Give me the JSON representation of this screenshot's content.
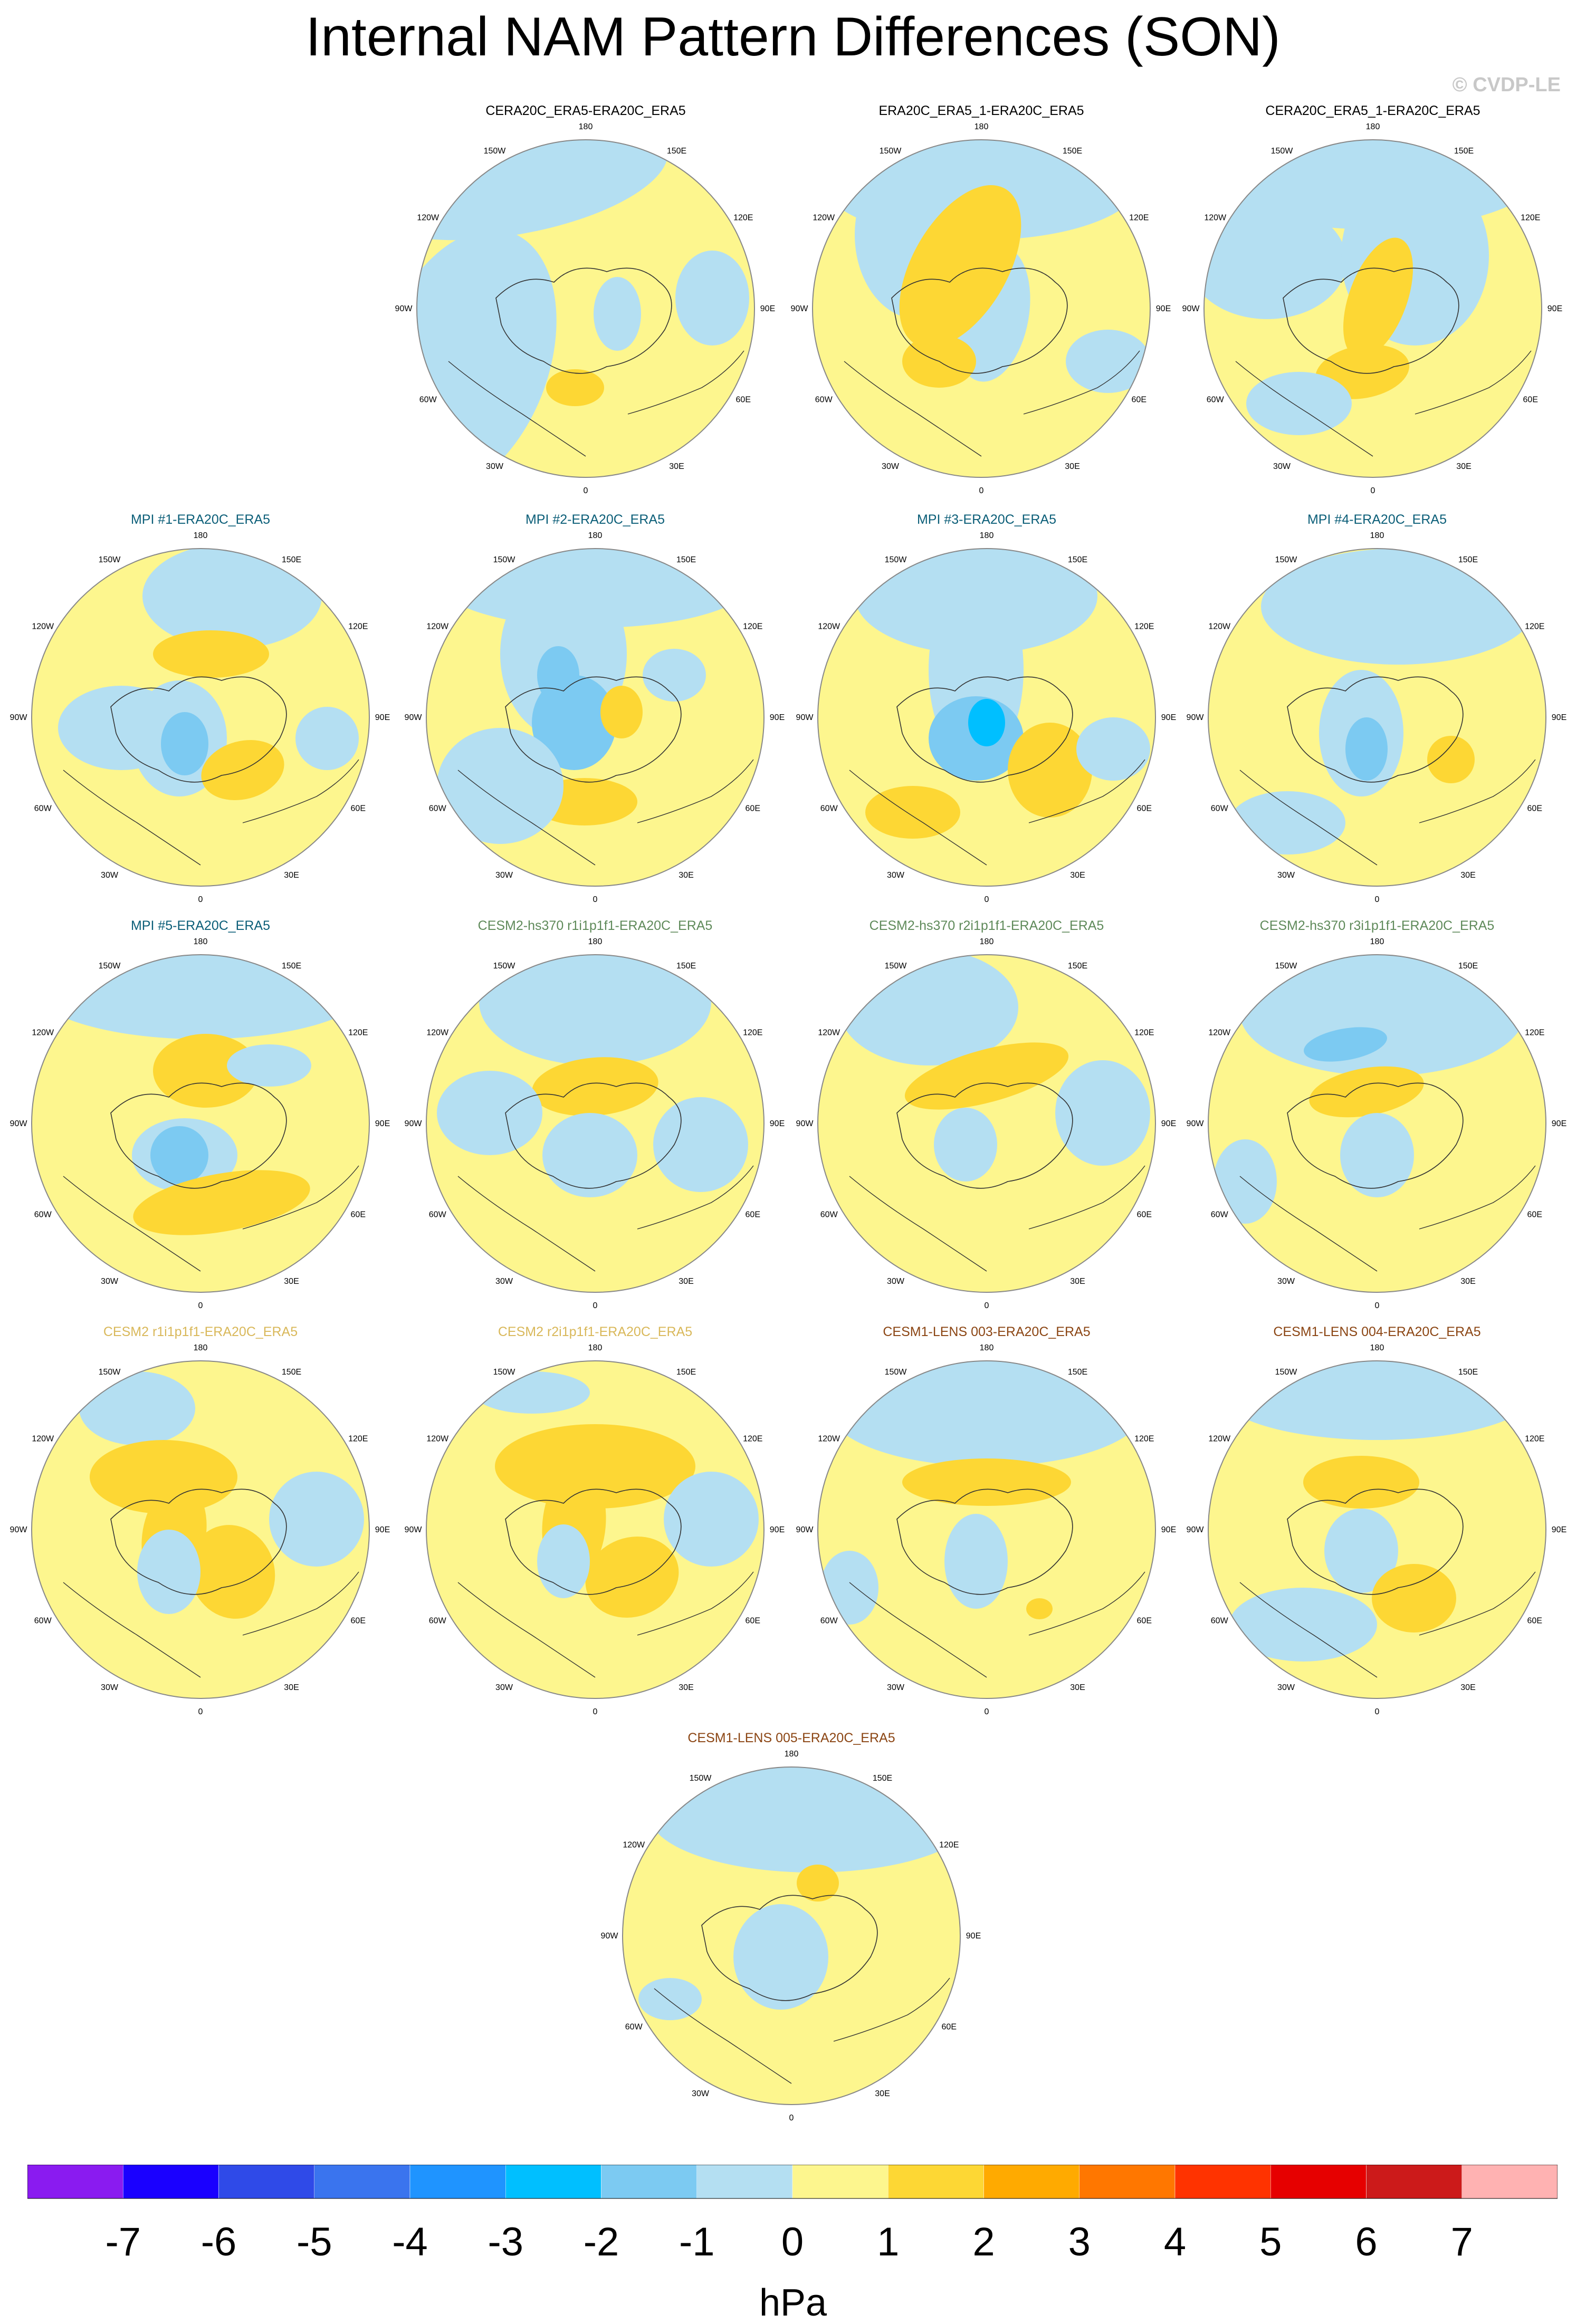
{
  "title": "Internal NAM Pattern Differences (SON)",
  "watermark": "© CVDP-LE",
  "longitude_labels": [
    "180",
    "150E",
    "120E",
    "90E",
    "60E",
    "30E",
    "0",
    "30W",
    "60W",
    "90W",
    "120W",
    "150W"
  ],
  "panels": [
    {
      "title": "CERA20C_ERA5-ERA20C_ERA5",
      "title_color": "#000000",
      "blobs": []
    },
    {
      "title": "ERA20C_ERA5_1-ERA20C_ERA5",
      "title_color": "#000000",
      "blobs": []
    },
    {
      "title": "CERA20C_ERA5_1-ERA20C_ERA5",
      "title_color": "#000000",
      "blobs": []
    },
    {
      "title": "MPI #1-ERA20C_ERA5",
      "title_color": "#0b5e78",
      "blobs": []
    },
    {
      "title": "MPI #2-ERA20C_ERA5",
      "title_color": "#0b5e78",
      "blobs": []
    },
    {
      "title": "MPI #3-ERA20C_ERA5",
      "title_color": "#0b5e78",
      "blobs": []
    },
    {
      "title": "MPI #4-ERA20C_ERA5",
      "title_color": "#0b5e78",
      "blobs": []
    },
    {
      "title": "MPI #5-ERA20C_ERA5",
      "title_color": "#0b5e78",
      "blobs": []
    },
    {
      "title": "CESM2-hs370 r1i1p1f1-ERA20C_ERA5",
      "title_color": "#5f8a5a",
      "blobs": []
    },
    {
      "title": "CESM2-hs370 r2i1p1f1-ERA20C_ERA5",
      "title_color": "#5f8a5a",
      "blobs": []
    },
    {
      "title": "CESM2-hs370 r3i1p1f1-ERA20C_ERA5",
      "title_color": "#5f8a5a",
      "blobs": []
    },
    {
      "title": "CESM2 r1i1p1f1-ERA20C_ERA5",
      "title_color": "#d9b85a",
      "blobs": []
    },
    {
      "title": "CESM2 r2i1p1f1-ERA20C_ERA5",
      "title_color": "#d9b85a",
      "blobs": []
    },
    {
      "title": "CESM1-LENS 003-ERA20C_ERA5",
      "title_color": "#8b4513",
      "blobs": []
    },
    {
      "title": "CESM1-LENS 004-ERA20C_ERA5",
      "title_color": "#8b4513",
      "blobs": []
    },
    {
      "title": "CESM1-LENS 005-ERA20C_ERA5",
      "title_color": "#8b4513",
      "blobs": []
    }
  ],
  "chart_data": {
    "type": "heatmap",
    "projection": "north polar stereographic",
    "variable": "NAM pattern difference",
    "units": "hPa",
    "colorbar": {
      "ticks": [
        "-7",
        "-6",
        "-5",
        "-4",
        "-3",
        "-2",
        "-1",
        "0",
        "1",
        "2",
        "3",
        "4",
        "5",
        "6",
        "7"
      ],
      "colors": [
        "#8a1bf0",
        "#1a00ff",
        "#2f4ae8",
        "#3a74ee",
        "#1f94ff",
        "#00bfff",
        "#7ccaf2",
        "#b4dff2",
        "#fdf68e",
        "#fdd734",
        "#ffaa00",
        "#ff7700",
        "#ff3300",
        "#e60000",
        "#cc1a1a",
        "#ffb2b2"
      ]
    }
  }
}
